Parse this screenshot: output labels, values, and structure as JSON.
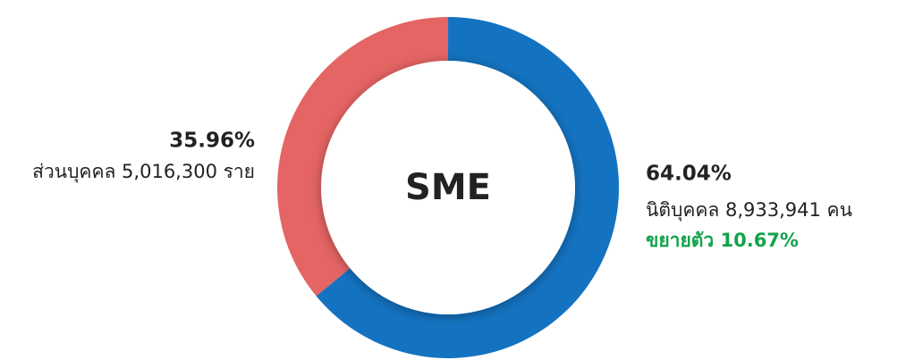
{
  "chart_data": {
    "type": "donut",
    "center_label": "SME",
    "categories": [
      "นิติบุคคล 8,933,941 คน",
      "ส่วนบุคคล 5,016,300 ราย"
    ],
    "values": [
      64.04,
      35.96
    ],
    "value_labels": [
      "64.04%",
      "35.96%"
    ],
    "colors": [
      "#1473c1",
      "#e56464"
    ],
    "annotation": "ขยายตัว 10.67%",
    "annotation_color": "#11a34a"
  }
}
